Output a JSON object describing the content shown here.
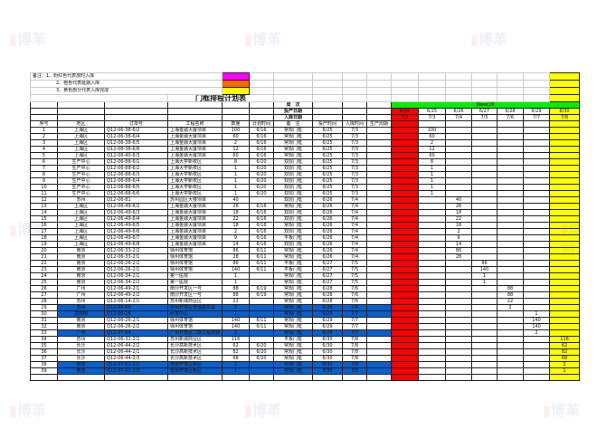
{
  "notes": [
    "备注：1、粉红色代表放时入库",
    "2、橙色代表延期入库",
    "3、黄色部分代表入库完成"
  ],
  "legend_colors": [
    "#ff00ff",
    "#ff6600",
    "#ffff00"
  ],
  "title": "门框排程计划表",
  "week_label": "周　次",
  "week": "Week26",
  "start_label": "投产日期",
  "stock_label": "入库日期",
  "start_dates": [
    "6/24",
    "6/25",
    "6/26",
    "6/27",
    "6/28",
    "6/29",
    "6/30"
  ],
  "stock_dates": [
    "7/2",
    "7/3",
    "7/4",
    "7/5",
    "7/6",
    "7/7",
    "7/8"
  ],
  "headers": [
    "序号",
    "地区",
    "订单号",
    "工程名称",
    "数量",
    "计划时间",
    "备　注",
    "投产时间",
    "入库时间",
    "生产周期"
  ],
  "colors": {
    "past": "#ff0000",
    "done": "#ffff00",
    "week": "#00ee00",
    "highlight": "#0a5fcf"
  },
  "rows": [
    {
      "no": "1",
      "area": "上海区",
      "order": "Q12-06-38-6/2",
      "project": "上海金融大厦项目",
      "qty": "100",
      "plan": "6/16",
      "note": "常规门框",
      "start": "6/25",
      "stock": "7/3",
      "day": 1,
      "blue": false
    },
    {
      "no": "2",
      "area": "上海区",
      "order": "Q12-06-38-6/4",
      "project": "上海金融大厦项目",
      "qty": "60",
      "plan": "6/16",
      "note": "常规门框",
      "start": "6/25",
      "stock": "7/3",
      "day": 1,
      "blue": false
    },
    {
      "no": "3",
      "area": "上海区",
      "order": "Q12-06-38-6/5",
      "project": "上海金融大厦项目",
      "qty": "2",
      "plan": "6/16",
      "note": "常规门框",
      "start": "6/25",
      "stock": "7/3",
      "day": 1,
      "blue": false
    },
    {
      "no": "4",
      "area": "上海区",
      "order": "Q12-06-38-6/6",
      "project": "上海金融大厦项目",
      "qty": "12",
      "plan": "6/16",
      "note": "常规门框",
      "start": "6/25",
      "stock": "7/3",
      "day": 1,
      "blue": false
    },
    {
      "no": "5",
      "area": "上海区",
      "order": "Q12-06-40-6/3",
      "project": "上海金融大厦项目",
      "qty": "60",
      "plan": "6/16",
      "note": "常规门框",
      "start": "6/25",
      "stock": "7/3",
      "day": 1,
      "blue": false
    },
    {
      "no": "6",
      "area": "生产中心",
      "order": "Q12-06-88-6/1",
      "project": "上海大学新校区",
      "qty": "8",
      "plan": "6/20",
      "note": "双层门框",
      "start": "6/25",
      "stock": "7/3",
      "day": 1,
      "blue": false
    },
    {
      "no": "7",
      "area": "生产中心",
      "order": "Q12-06-88-6/2",
      "project": "上海大学新校区",
      "qty": "1",
      "plan": "6/20",
      "note": "双层门框",
      "start": "6/25",
      "stock": "7/3",
      "day": 1,
      "blue": false
    },
    {
      "no": "8",
      "area": "生产中心",
      "order": "Q12-06-88-6/3",
      "project": "上海大学新校区",
      "qty": "1",
      "plan": "6/20",
      "note": "双层门框",
      "start": "6/25",
      "stock": "7/3",
      "day": 1,
      "blue": false
    },
    {
      "no": "9",
      "area": "生产中心",
      "order": "Q12-06-88-6/4",
      "project": "上海大学新校区",
      "qty": "1",
      "plan": "6/20",
      "note": "双层门框",
      "start": "6/25",
      "stock": "7/3",
      "day": 1,
      "blue": false
    },
    {
      "no": "10",
      "area": "生产中心",
      "order": "Q12-06-88-6/5",
      "project": "上海大学新校区",
      "qty": "1",
      "plan": "6/20",
      "note": "双层门框",
      "start": "6/25",
      "stock": "7/3",
      "day": 1,
      "blue": false
    },
    {
      "no": "11",
      "area": "生产中心",
      "order": "Q12-06-88-6/6",
      "project": "上海大学新校区",
      "qty": "1",
      "plan": "6/20",
      "note": "双层门框",
      "start": "6/25",
      "stock": "7/3",
      "day": 1,
      "blue": false
    },
    {
      "no": "12",
      "area": "苏州",
      "order": "Q12-06-81",
      "project": "苏州园区大楼项目",
      "qty": "40",
      "plan": "",
      "note": "双层门框",
      "start": "6/26",
      "stock": "7/4",
      "day": 2,
      "blue": false
    },
    {
      "no": "13",
      "area": "上海区",
      "order": "Q12-06-49-6/2",
      "project": "上海金融大厦项目",
      "qty": "26",
      "plan": "6/16",
      "note": "常规门框",
      "start": "6/26",
      "stock": "7/4",
      "day": 2,
      "blue": false
    },
    {
      "no": "14",
      "area": "上海区",
      "order": "Q12-06-49-6/3",
      "project": "上海金融大厦项目",
      "qty": "18",
      "plan": "6/16",
      "note": "双层门框",
      "start": "6/26",
      "stock": "7/4",
      "day": 2,
      "blue": false
    },
    {
      "no": "15",
      "area": "上海区",
      "order": "Q12-06-49-6/4",
      "project": "上海金融大厦项目",
      "qty": "22",
      "plan": "6/16",
      "note": "双层门框",
      "start": "6/26",
      "stock": "7/4",
      "day": 2,
      "blue": false
    },
    {
      "no": "16",
      "area": "上海区",
      "order": "Q12-06-49-6/5",
      "project": "上海金融大厦项目",
      "qty": "18",
      "plan": "6/16",
      "note": "常规门框",
      "start": "6/26",
      "stock": "7/4",
      "day": 2,
      "blue": false
    },
    {
      "no": "17",
      "area": "上海区",
      "order": "Q12-06-49-6/6",
      "project": "上海金融大厦项目",
      "qty": "2",
      "plan": "6/16",
      "note": "双层门框",
      "start": "6/26",
      "stock": "7/4",
      "day": 2,
      "blue": false
    },
    {
      "no": "18",
      "area": "上海区",
      "order": "Q12-06-49-6/7",
      "project": "上海金融大厦项目",
      "qty": "9",
      "plan": "6/16",
      "note": "平板门框",
      "start": "6/26",
      "stock": "7/4",
      "day": 2,
      "blue": false
    },
    {
      "no": "19",
      "area": "上海区",
      "order": "Q12-06-49-6/8",
      "project": "上海金融大厦项目",
      "qty": "14",
      "plan": "6/16",
      "note": "双层门框",
      "start": "6/26",
      "stock": "7/4",
      "day": 2,
      "blue": false
    },
    {
      "no": "20",
      "area": "南京",
      "order": "Q12-06-33-2/2",
      "project": "徐州体育馆",
      "qty": "86",
      "plan": "6/11",
      "note": "常规门框",
      "start": "6/26",
      "stock": "7/4",
      "day": 2,
      "blue": false
    },
    {
      "no": "21",
      "area": "南京",
      "order": "Q12-06-33-2/1",
      "project": "徐州体育馆",
      "qty": "28",
      "plan": "6/11",
      "note": "常规门框",
      "start": "6/26",
      "stock": "7/4",
      "day": 2,
      "blue": false
    },
    {
      "no": "22",
      "area": "南京",
      "order": "Q12-06-26-2/2",
      "project": "徐州体育馆",
      "qty": "86",
      "plan": "6/11",
      "note": "平板门框",
      "start": "6/27",
      "stock": "7/5",
      "day": 3,
      "blue": false
    },
    {
      "no": "23",
      "area": "南京",
      "order": "Q12-06-26-2/1",
      "project": "徐州体育馆",
      "qty": "140",
      "plan": "6/11",
      "note": "平板门框",
      "start": "6/27",
      "stock": "7/5",
      "day": 3,
      "blue": false
    },
    {
      "no": "24",
      "area": "南京",
      "order": "Q12-06-34-2/1",
      "project": "第一医院",
      "qty": "1",
      "plan": "",
      "note": "常规门框",
      "start": "6/27",
      "stock": "7/5",
      "day": 3,
      "blue": false
    },
    {
      "no": "25",
      "area": "南京",
      "order": "Q12-06-34-2/2",
      "project": "第一医院",
      "qty": "1",
      "plan": "",
      "note": "常规门框",
      "start": "6/27",
      "stock": "7/5",
      "day": 3,
      "blue": false
    },
    {
      "no": "26",
      "area": "广州",
      "order": "Q12-06-49-2/1",
      "project": "南沙开发区一号",
      "qty": "88",
      "plan": "6/19",
      "note": "常规门框",
      "start": "6/28",
      "stock": "7/6",
      "day": 4,
      "blue": false
    },
    {
      "no": "27",
      "area": "广州",
      "order": "Q12-06-49-2/2",
      "project": "南沙开发区一号",
      "qty": "88",
      "plan": "6/19",
      "note": "常规门框",
      "start": "6/28",
      "stock": "7/6",
      "day": 4,
      "blue": false
    },
    {
      "no": "28",
      "area": "苏州",
      "order": "Q12-06-14-2/1",
      "project": "苏州新城商业区",
      "qty": "22",
      "plan": "",
      "note": "常规门框",
      "start": "6/28",
      "stock": "7/6",
      "day": 4,
      "blue": false
    },
    {
      "no": "29",
      "area": "苏州",
      "order": "Q12-06-69",
      "project": "苏州开发区管理委员会",
      "qty": "2",
      "plan": "",
      "note": "常规门框",
      "start": "6/28",
      "stock": "7/6",
      "day": 4,
      "blue": true
    },
    {
      "no": "30",
      "area": "发展部",
      "order": "Q12-06-16",
      "project": "研发中心",
      "qty": "1",
      "plan": "",
      "note": "常规门框",
      "start": "6/29",
      "stock": "7/7",
      "day": 5,
      "blue": true
    },
    {
      "no": "31",
      "area": "南京",
      "order": "Q12-06-26-2/1",
      "project": "徐州体育馆",
      "qty": "140",
      "plan": "6/11",
      "note": "常规门框",
      "start": "6/29",
      "stock": "7/7",
      "day": 5,
      "blue": false
    },
    {
      "no": "32",
      "area": "南京",
      "order": "Q12-06-26-2/2",
      "project": "徐州体育馆",
      "qty": "140",
      "plan": "6/11",
      "note": "常规门框",
      "start": "6/29",
      "stock": "7/7",
      "day": 5,
      "blue": false
    },
    {
      "no": "33",
      "area": "广州",
      "order": "Q12-07-04",
      "project": "广州开发区二期工程项目",
      "qty": "2",
      "plan": "",
      "note": "常规门框",
      "start": "6/29",
      "stock": "7/7",
      "day": 5,
      "blue": true
    },
    {
      "no": "34",
      "area": "苏州",
      "order": "Q12-06-32-2/2",
      "project": "苏州新城商业区",
      "qty": "116",
      "plan": "",
      "note": "平板门框",
      "start": "6/30",
      "stock": "7/8",
      "day": 6,
      "blue": false
    },
    {
      "no": "35",
      "area": "长沙",
      "order": "Q12-06-44-2/2",
      "project": "长沙高新技术区",
      "qty": "62",
      "plan": "6/20",
      "note": "常规门框",
      "start": "6/30",
      "stock": "7/8",
      "day": 6,
      "blue": false
    },
    {
      "no": "36",
      "area": "长沙",
      "order": "Q12-06-44-2/1",
      "project": "长沙高新技术区",
      "qty": "82",
      "plan": "6/20",
      "note": "常规门框",
      "start": "6/30",
      "stock": "7/8",
      "day": 6,
      "blue": false
    },
    {
      "no": "37",
      "area": "长沙",
      "order": "Q12-06-44-2/3",
      "project": "长沙高新技术区",
      "qty": "68",
      "plan": "6/20",
      "note": "常规门框",
      "start": "6/30",
      "stock": "7/8",
      "day": 6,
      "blue": false
    },
    {
      "no": "38",
      "area": "南京",
      "order": "Q12-07-02-2/1",
      "project": "南京开发区新区",
      "qty": "2",
      "plan": "",
      "note": "常规门框",
      "start": "6/30",
      "stock": "7/8",
      "day": 6,
      "blue": true
    },
    {
      "no": "39",
      "area": "南京",
      "order": "Q12-07-02-2/2",
      "project": "南京开发区新区",
      "qty": "1",
      "plan": "",
      "note": "常规门框",
      "start": "6/30",
      "stock": "7/8",
      "day": 6,
      "blue": true
    }
  ]
}
